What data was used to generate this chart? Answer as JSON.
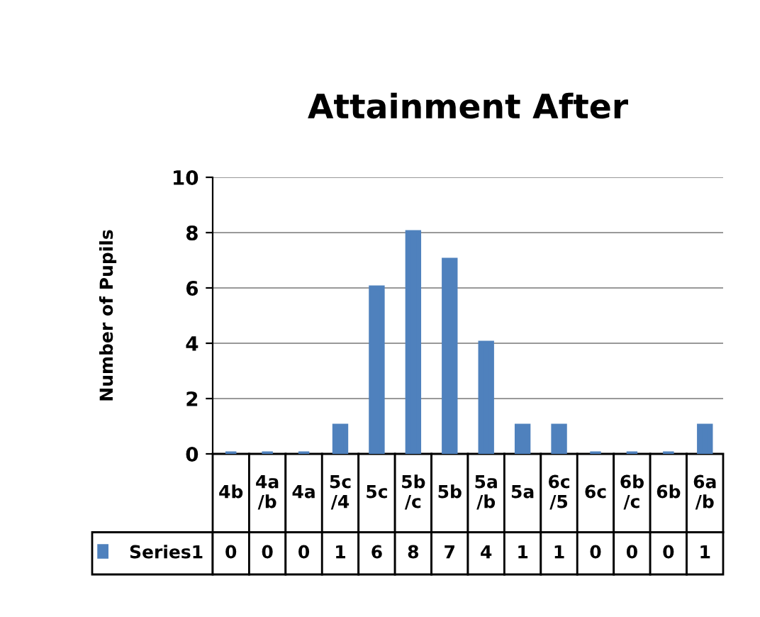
{
  "chart_data": {
    "type": "bar",
    "title": "Attainment After",
    "ylabel": "Number of Pupils",
    "categories": [
      "4b",
      "4a/b",
      "4a",
      "5c/4",
      "5c",
      "5b/c",
      "5b",
      "5a/b",
      "5a",
      "6c/5",
      "6c",
      "6b/c",
      "6b",
      "6a/b"
    ],
    "series": [
      {
        "name": "Series1",
        "color": "#4f81bd",
        "values": [
          0,
          0,
          0,
          1,
          6,
          8,
          7,
          4,
          1,
          1,
          0,
          0,
          0,
          1
        ]
      }
    ],
    "ylim": [
      0,
      10
    ],
    "yticks": [
      0,
      2,
      4,
      6,
      8,
      10
    ],
    "grid": "y",
    "data_labels": true
  }
}
